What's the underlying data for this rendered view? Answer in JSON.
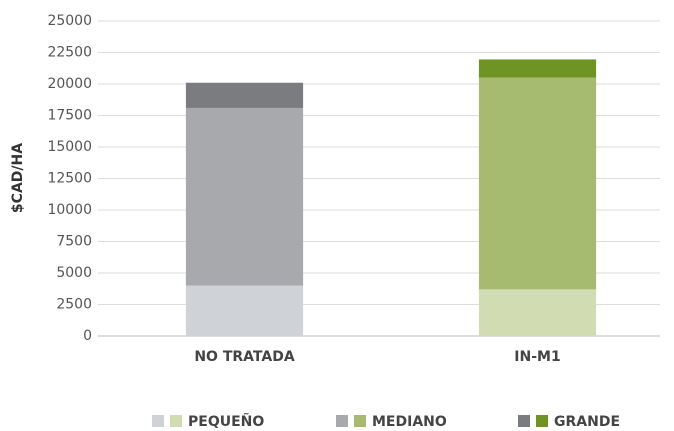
{
  "chart_data": {
    "type": "stacked_bar",
    "y_label": "$CAD/HA",
    "categories": [
      "NO TRATADA",
      "IN-M1"
    ],
    "series": [
      {
        "name": "PEQUEÑO",
        "colors": [
          "#cfd2d6",
          "#d1dcb2"
        ],
        "values": [
          4000,
          3700
        ]
      },
      {
        "name": "MEDIANO",
        "colors": [
          "#a7a9ad",
          "#a7bb70"
        ],
        "values": [
          14100,
          16800
        ]
      },
      {
        "name": "GRANDE",
        "colors": [
          "#7a7c80",
          "#6f9424"
        ],
        "values": [
          2000,
          1450
        ]
      }
    ],
    "ylim": [
      0,
      25000
    ],
    "yticks": [
      0,
      2500,
      5000,
      7500,
      10000,
      12500,
      15000,
      17500,
      20000,
      22500,
      25000
    ],
    "grid": true,
    "legend": "bottom"
  }
}
